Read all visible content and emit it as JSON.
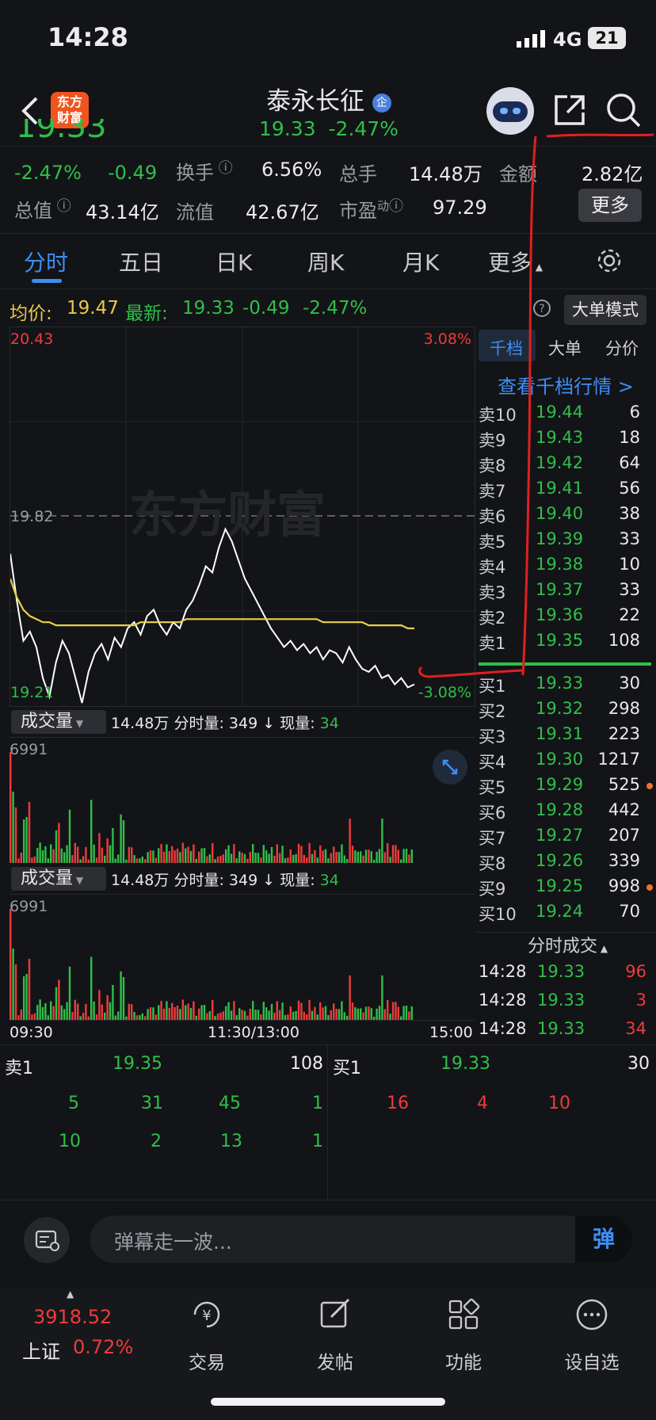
{
  "status_bar": {
    "time": "14:28",
    "network": "4G",
    "battery": "21"
  },
  "header": {
    "logo_line1": "东方",
    "logo_line2": "财富",
    "title": "泰永长征",
    "title_badge": "企",
    "price": "19.33",
    "change_pct": "-2.47%"
  },
  "info": {
    "big_price": "19.33",
    "change_pct": "-2.47%",
    "change_val": "-0.49",
    "turnover_label": "换手",
    "turnover_val": "6.56%",
    "volume_label": "总手",
    "volume_val": "14.48万",
    "amount_label": "金额",
    "amount_val": "2.82亿",
    "mktcap_label": "总值",
    "mktcap_val": "43.14亿",
    "float_label": "流值",
    "float_val": "42.67亿",
    "pe_label": "市盈",
    "pe_sup": "动",
    "pe_val": "97.29",
    "more_btn": "更多"
  },
  "tabs": [
    "分时",
    "五日",
    "日K",
    "周K",
    "月K",
    "更多"
  ],
  "avg_row": {
    "avg_label": "均价:",
    "avg_val": "19.47",
    "latest_label": "最新:",
    "latest_val": "19.33",
    "chg": "-0.49",
    "pct": "-2.47%",
    "mode_btn": "大单模式"
  },
  "chart": {
    "y_max": "20.43",
    "y_mid": "19.82",
    "y_min": "19.21",
    "pct_max": "3.08%",
    "pct_min": "-3.08%",
    "watermark": "东方财富",
    "x_start": "09:30",
    "x_mid": "11:30/13:00",
    "x_end": "15:00"
  },
  "chart_data": {
    "type": "line",
    "title": "",
    "ylim": [
      19.21,
      20.43
    ],
    "ref_price": 19.82,
    "series": [
      {
        "name": "",
        "color": "#ffffff",
        "values": [
          19.7,
          19.55,
          19.42,
          19.45,
          19.4,
          19.3,
          19.24,
          19.35,
          19.42,
          19.38,
          19.3,
          19.22,
          19.32,
          19.38,
          19.41,
          19.36,
          19.43,
          19.4,
          19.46,
          19.48,
          19.44,
          19.5,
          19.52,
          19.47,
          19.44,
          19.48,
          19.46,
          19.52,
          19.55,
          19.6,
          19.66,
          19.64,
          19.72,
          19.78,
          19.74,
          19.68,
          19.62,
          19.58,
          19.54,
          19.5,
          19.46,
          19.43,
          19.4,
          19.42,
          19.39,
          19.41,
          19.38,
          19.4,
          19.36,
          19.39,
          19.38,
          19.35,
          19.4,
          19.36,
          19.33,
          19.32,
          19.34,
          19.3,
          19.31,
          19.28,
          19.3,
          19.27,
          19.28
        ]
      },
      {
        "name": "",
        "color": "#e8d24a",
        "values": [
          19.62,
          19.56,
          19.52,
          19.5,
          19.49,
          19.48,
          19.48,
          19.47,
          19.47,
          19.47,
          19.47,
          19.47,
          19.47,
          19.47,
          19.47,
          19.47,
          19.47,
          19.47,
          19.47,
          19.47,
          19.48,
          19.48,
          19.48,
          19.48,
          19.48,
          19.48,
          19.48,
          19.49,
          19.49,
          19.49,
          19.49,
          19.49,
          19.49,
          19.49,
          19.49,
          19.49,
          19.49,
          19.49,
          19.49,
          19.49,
          19.49,
          19.49,
          19.49,
          19.49,
          19.49,
          19.49,
          19.49,
          19.49,
          19.48,
          19.48,
          19.48,
          19.48,
          19.48,
          19.48,
          19.48,
          19.47,
          19.47,
          19.47,
          19.47,
          19.47,
          19.47,
          19.46,
          19.46
        ]
      }
    ],
    "volume_max": 6991
  },
  "volume_panel": {
    "select_label": "成交量",
    "total": "14.48万",
    "period_label": "分时量:",
    "period_val": "349",
    "arrow": "↓",
    "now_label": "现量:",
    "now_val": "34",
    "max_label": "6991"
  },
  "orderbook": {
    "tabs": [
      "千档",
      "大单",
      "分价"
    ],
    "link": "查看千档行情 >",
    "asks": [
      {
        "k": "卖10",
        "p": "19.44",
        "v": "6"
      },
      {
        "k": "卖9",
        "p": "19.43",
        "v": "18"
      },
      {
        "k": "卖8",
        "p": "19.42",
        "v": "64"
      },
      {
        "k": "卖7",
        "p": "19.41",
        "v": "56"
      },
      {
        "k": "卖6",
        "p": "19.40",
        "v": "38"
      },
      {
        "k": "卖5",
        "p": "19.39",
        "v": "33"
      },
      {
        "k": "卖4",
        "p": "19.38",
        "v": "10"
      },
      {
        "k": "卖3",
        "p": "19.37",
        "v": "33"
      },
      {
        "k": "卖2",
        "p": "19.36",
        "v": "22"
      },
      {
        "k": "卖1",
        "p": "19.35",
        "v": "108"
      }
    ],
    "bids": [
      {
        "k": "买1",
        "p": "19.33",
        "v": "30"
      },
      {
        "k": "买2",
        "p": "19.32",
        "v": "298"
      },
      {
        "k": "买3",
        "p": "19.31",
        "v": "223"
      },
      {
        "k": "买4",
        "p": "19.30",
        "v": "1217"
      },
      {
        "k": "买5",
        "p": "19.29",
        "v": "525"
      },
      {
        "k": "买6",
        "p": "19.28",
        "v": "442"
      },
      {
        "k": "买7",
        "p": "19.27",
        "v": "207"
      },
      {
        "k": "买8",
        "p": "19.26",
        "v": "339"
      },
      {
        "k": "买9",
        "p": "19.25",
        "v": "998"
      },
      {
        "k": "买10",
        "p": "19.24",
        "v": "70"
      }
    ],
    "trades_head": "分时成交",
    "trades": [
      {
        "t": "14:28",
        "p": "19.33",
        "v": "96"
      },
      {
        "t": "14:28",
        "p": "19.33",
        "v": "3"
      },
      {
        "t": "14:28",
        "p": "19.33",
        "v": "34"
      }
    ]
  },
  "summary": {
    "sell_label": "卖1",
    "sell_price": "19.35",
    "sell_vol": "108",
    "buy_label": "买1",
    "buy_price": "19.33",
    "buy_vol": "30",
    "sell_row1": [
      "5",
      "31",
      "45",
      "1"
    ],
    "sell_row2": [
      "10",
      "2",
      "13",
      "1"
    ],
    "buy_row1": [
      "16",
      "4",
      "10"
    ]
  },
  "comment": {
    "placeholder": "弹幕走一波...",
    "send": "弹"
  },
  "nav": {
    "index_val": "3918.52",
    "index_name": "上证",
    "index_pct": "0.72%",
    "items": [
      "交易",
      "发帖",
      "功能",
      "设自选"
    ]
  }
}
